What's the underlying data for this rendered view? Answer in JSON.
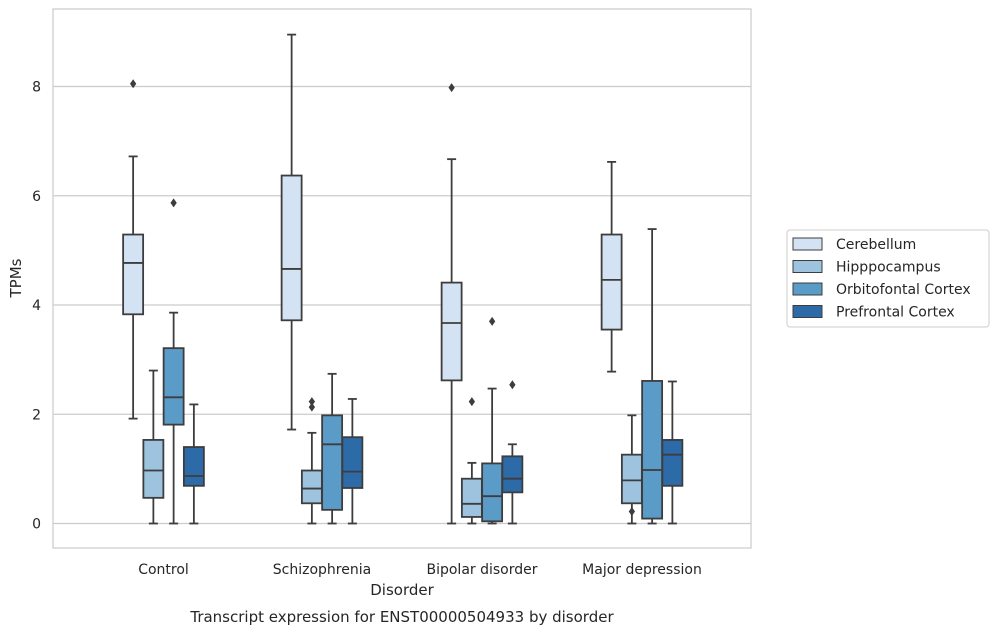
{
  "chart_data": {
    "type": "boxplot",
    "title": "Transcript expression for ENST00000504933 by disorder",
    "xlabel": "Disorder",
    "ylabel": "TPMs",
    "ylim": [
      -0.45,
      9.3
    ],
    "yticks": [
      0,
      2,
      4,
      6,
      8
    ],
    "grid": true,
    "legend_position": "right",
    "categories": [
      "Control",
      "Schizophrenia",
      "Bipolar disorder",
      "Major depression"
    ],
    "series": [
      {
        "name": "Cerebellum",
        "color": "#d4e3f3",
        "boxes": [
          {
            "whislo": 1.92,
            "q1": 3.83,
            "med": 4.77,
            "q3": 5.29,
            "whishi": 6.72,
            "fliers": [
              8.05
            ]
          },
          {
            "whislo": 1.72,
            "q1": 3.72,
            "med": 4.66,
            "q3": 6.37,
            "whishi": 8.95,
            "fliers": []
          },
          {
            "whislo": 0.0,
            "q1": 2.62,
            "med": 3.67,
            "q3": 4.41,
            "whishi": 6.67,
            "fliers": [
              7.98
            ]
          },
          {
            "whislo": 2.78,
            "q1": 3.55,
            "med": 4.46,
            "q3": 5.29,
            "whishi": 6.62,
            "fliers": []
          }
        ]
      },
      {
        "name": "Hipppocampus",
        "color": "#9dc3df",
        "boxes": [
          {
            "whislo": 0.0,
            "q1": 0.47,
            "med": 0.97,
            "q3": 1.53,
            "whishi": 2.8,
            "fliers": []
          },
          {
            "whislo": 0.0,
            "q1": 0.37,
            "med": 0.64,
            "q3": 0.97,
            "whishi": 1.66,
            "fliers": [
              2.13,
              2.23
            ]
          },
          {
            "whislo": 0.0,
            "q1": 0.12,
            "med": 0.36,
            "q3": 0.82,
            "whishi": 1.11,
            "fliers": [
              2.23
            ]
          },
          {
            "whislo": 0.0,
            "q1": 0.37,
            "med": 0.79,
            "q3": 1.26,
            "whishi": 1.98,
            "fliers": [
              0.22
            ]
          }
        ]
      },
      {
        "name": "Orbitofontal Cortex",
        "color": "#5b9bc8",
        "boxes": [
          {
            "whislo": 0.0,
            "q1": 1.81,
            "med": 2.31,
            "q3": 3.21,
            "whishi": 3.86,
            "fliers": [
              5.87
            ]
          },
          {
            "whislo": 0.0,
            "q1": 0.25,
            "med": 1.45,
            "q3": 1.98,
            "whishi": 2.74,
            "fliers": []
          },
          {
            "whislo": 0.0,
            "q1": 0.04,
            "med": 0.5,
            "q3": 1.1,
            "whishi": 2.47,
            "fliers": [
              3.7
            ]
          },
          {
            "whislo": 0.0,
            "q1": 0.09,
            "med": 0.98,
            "q3": 2.61,
            "whishi": 5.39,
            "fliers": []
          }
        ]
      },
      {
        "name": "Prefrontal Cortex",
        "color": "#2d6aa8",
        "boxes": [
          {
            "whislo": 0.0,
            "q1": 0.69,
            "med": 0.87,
            "q3": 1.4,
            "whishi": 2.18,
            "fliers": []
          },
          {
            "whislo": 0.0,
            "q1": 0.65,
            "med": 0.95,
            "q3": 1.58,
            "whishi": 2.28,
            "fliers": []
          },
          {
            "whislo": 0.0,
            "q1": 0.57,
            "med": 0.82,
            "q3": 1.23,
            "whishi": 1.45,
            "fliers": [
              2.54
            ]
          },
          {
            "whislo": 0.0,
            "q1": 0.69,
            "med": 1.26,
            "q3": 1.53,
            "whishi": 2.6,
            "fliers": []
          }
        ]
      }
    ]
  }
}
